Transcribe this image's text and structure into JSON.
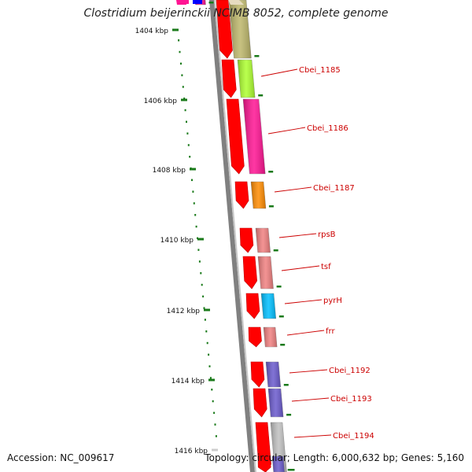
{
  "title": "Clostridium beijerinckii NCIMB 8052, complete genome",
  "footer": {
    "accession": "Accession: NC_009617",
    "summary": "Topology: circular; Length: 6,000,632 bp; Genes: 5,160"
  },
  "scale": {
    "unit": "kbp",
    "ticks": [
      "1404 kbp",
      "1406 kbp",
      "1408 kbp",
      "1410 kbp",
      "1412 kbp",
      "1414 kbp",
      "1416 kbp"
    ]
  },
  "colors": {
    "tick": "#1a7a1a",
    "label": "#cc0000",
    "backbone": "#808080",
    "strand_arrow": "#ff0000"
  },
  "genes": [
    {
      "label": "",
      "color": "#ff1493"
    },
    {
      "label": "",
      "color": "#bdb76b"
    },
    {
      "label": "Cbei_1185",
      "color": "#adff2f"
    },
    {
      "label": "Cbei_1186",
      "color": "#ff1493"
    },
    {
      "label": "Cbei_1187",
      "color": "#ff8c00"
    },
    {
      "label": "rpsB",
      "color": "#f08080"
    },
    {
      "label": "tsf",
      "color": "#f08080"
    },
    {
      "label": "pyrH",
      "color": "#00bfff"
    },
    {
      "label": "frr",
      "color": "#f08080"
    },
    {
      "label": "Cbei_1192",
      "color": "#6a5acd"
    },
    {
      "label": "Cbei_1193",
      "color": "#6a5acd"
    },
    {
      "label": "Cbei_1194",
      "color": "#c0c0c0"
    },
    {
      "label": "",
      "color": "#6a5acd"
    }
  ]
}
